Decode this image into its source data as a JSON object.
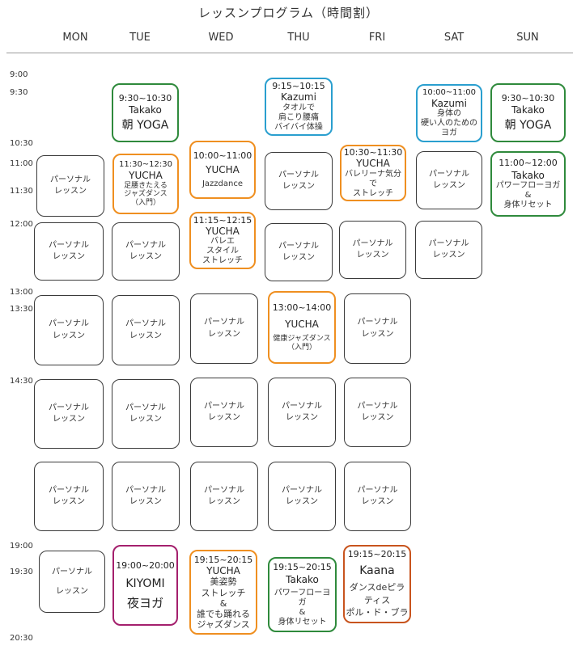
{
  "title": "レッスンプログラム（時間割）",
  "days": [
    "MON",
    "TUE",
    "WED",
    "THU",
    "FRI",
    "SAT",
    "SUN"
  ],
  "times": [
    "9:00",
    "9:30",
    "10:30",
    "11:00",
    "11:30",
    "12:00",
    "13:00",
    "13:30",
    "14:30",
    "19:00",
    "19:30",
    "20:30"
  ],
  "personal_label": "パーソナル\nレッスン",
  "lessons": {
    "tue_morning": {
      "time": "9:30~10:30",
      "name": "Takako",
      "desc": "朝 YOGA"
    },
    "thu_morning": {
      "time": "9:15~10:15",
      "name": "Kazumi",
      "desc": "タオルで\n肩こり腰痛\nバイバイ体操"
    },
    "sat_morning": {
      "time": "10:00~11:00",
      "name": "Kazumi",
      "desc": "身体の\n硬い人のための\nヨガ"
    },
    "sun_morning": {
      "time": "9:30~10:30",
      "name": "Takako",
      "desc": "朝 YOGA"
    },
    "tue_late": {
      "time": "11:30~12:30",
      "name": "YUCHA",
      "desc": "足腰きたえる\nジャズダンス\n（入門）"
    },
    "wed_mid": {
      "time": "10:00~11:00",
      "name": "YUCHA",
      "desc": "Jazzdance"
    },
    "fri_mid": {
      "time": "10:30~11:30",
      "name": "YUCHA",
      "desc": "バレリーナ気分で\nストレッチ"
    },
    "sun_mid": {
      "time": "11:00~12:00",
      "name": "Takako",
      "desc": "パワーフローヨガ\n&\n身体リセット"
    },
    "wed_noon": {
      "time": "11:15~12:15",
      "name": "YUCHA",
      "desc": "バレエ\nスタイル\nストレッチ"
    },
    "thu_pm": {
      "time": "13:00~14:00",
      "name": "YUCHA",
      "desc": "健康ジャズダンス\n（入門）"
    },
    "tue_eve": {
      "time": "19:00~20:00",
      "name": "KIYOMI",
      "desc": "夜ヨガ"
    },
    "wed_eve": {
      "time": "19:15~20:15",
      "name": "YUCHA",
      "desc": "美姿勢\nストレッチ\n&\n誰でも踊れる\nジャズダンス"
    },
    "thu_eve": {
      "time": "19:15~20:15",
      "name": "Takako",
      "desc": "パワーフローヨガ\n&\n身体リセット"
    },
    "fri_eve": {
      "time": "19:15~20:15",
      "name": "Kaana",
      "desc": "ダンスdeピラティス\nポル・ド・ブラ"
    }
  },
  "colors": {
    "personal": "#3a3a3a",
    "takako": "#2f8a3c",
    "yucha": "#ef8f20",
    "kazumi": "#2a9fcf",
    "kiyomi": "#a4206d",
    "kaana": "#c8541e"
  }
}
